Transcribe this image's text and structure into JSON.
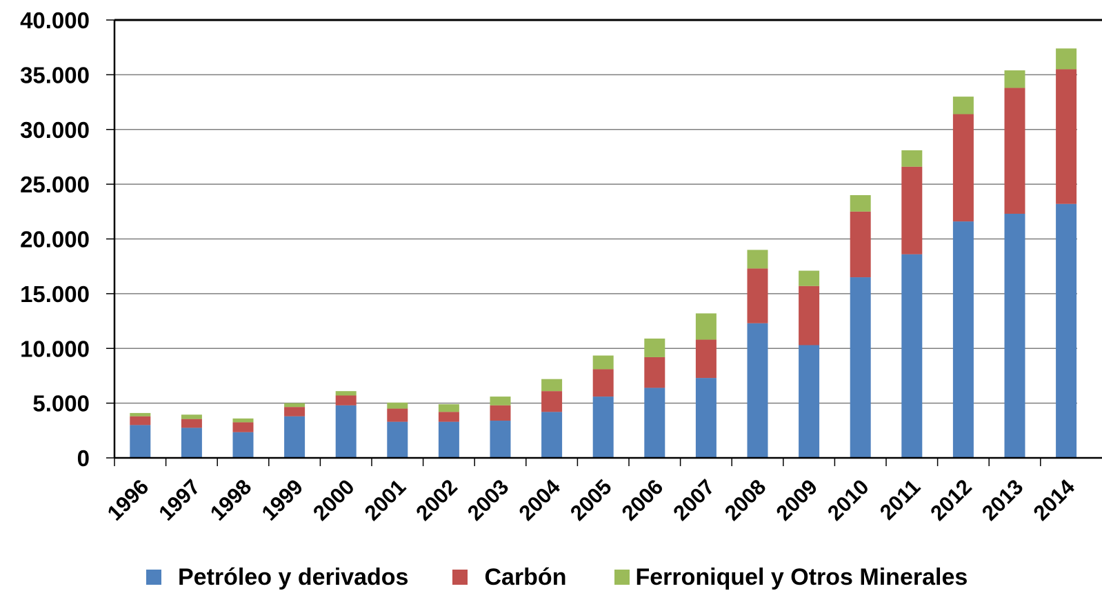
{
  "chart_data": {
    "type": "bar",
    "stacked": true,
    "title": "",
    "xlabel": "",
    "ylabel": "",
    "ylim": [
      0,
      40000
    ],
    "yticks": [
      0,
      5000,
      10000,
      15000,
      20000,
      25000,
      30000,
      35000,
      40000
    ],
    "ytick_labels": [
      "0",
      "5.000",
      "10.000",
      "15.000",
      "20.000",
      "25.000",
      "30.000",
      "35.000",
      "40.000"
    ],
    "grid": true,
    "legend_position": "bottom",
    "categories": [
      "1996",
      "1997",
      "1998",
      "1999",
      "2000",
      "2001",
      "2002",
      "2003",
      "2004",
      "2005",
      "2006",
      "2007",
      "2008",
      "2009",
      "2010",
      "2011",
      "2012",
      "2013",
      "2014"
    ],
    "series": [
      {
        "name": "Petróleo y derivados",
        "color": "#4F81BD",
        "values": [
          3000,
          2750,
          2350,
          3800,
          4800,
          3300,
          3300,
          3400,
          4200,
          5600,
          6400,
          7300,
          12300,
          10300,
          16500,
          18600,
          21600,
          22300,
          23200
        ]
      },
      {
        "name": "Carbón",
        "color": "#C0504D",
        "values": [
          800,
          800,
          900,
          850,
          900,
          1200,
          900,
          1400,
          1900,
          2500,
          2800,
          3500,
          5000,
          5400,
          6000,
          8000,
          9800,
          11500,
          12300
        ]
      },
      {
        "name": "Ferroniquel y Otros Minerales",
        "color": "#9BBB59",
        "values": [
          300,
          400,
          350,
          350,
          400,
          550,
          700,
          800,
          1100,
          1250,
          1700,
          2400,
          1700,
          1400,
          1500,
          1500,
          1600,
          1600,
          1900
        ]
      }
    ]
  }
}
